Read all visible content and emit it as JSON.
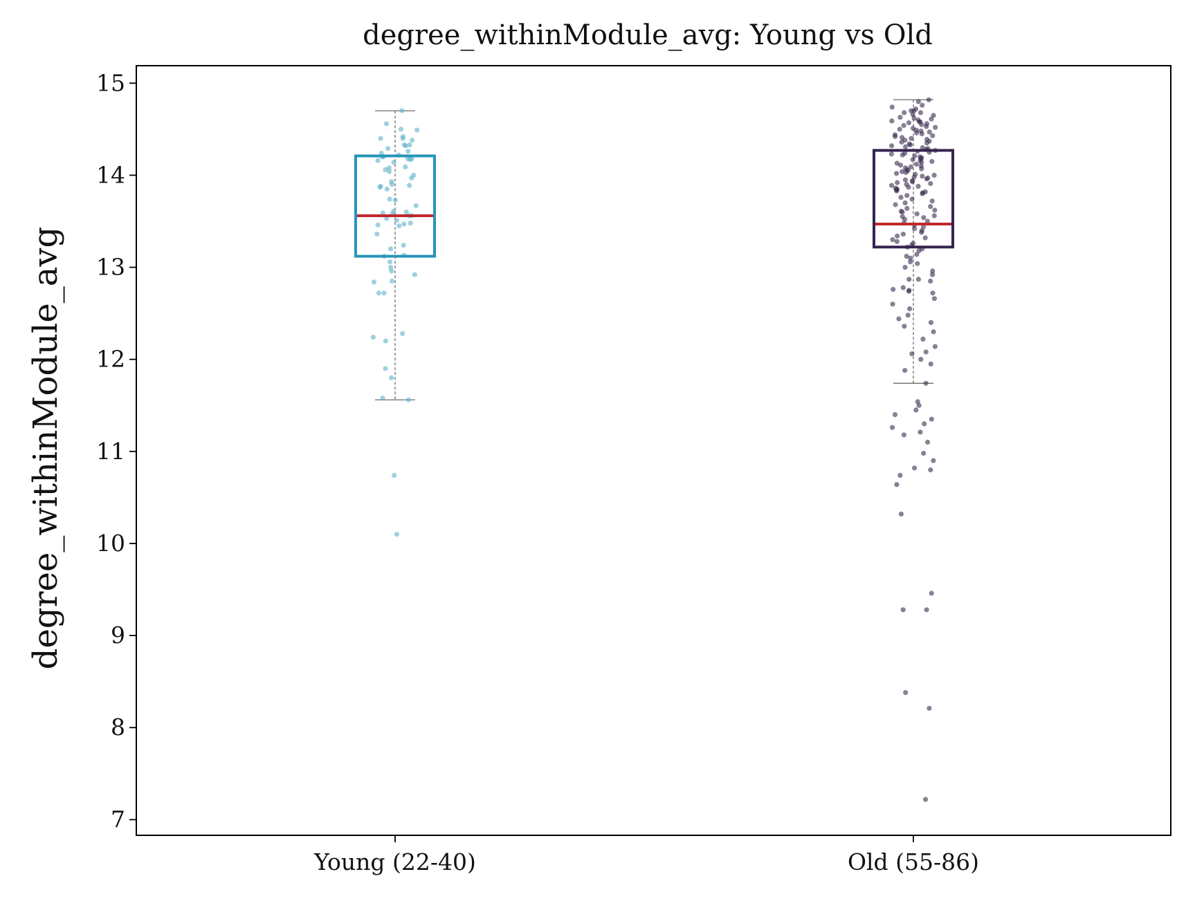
{
  "chart_data": {
    "type": "box",
    "title": "degree_withinModule_avg: Young vs Old",
    "xlabel": "",
    "ylabel": "degree_withinModule_avg",
    "ylim": [
      6.83,
      15.19
    ],
    "yticks": [
      7,
      8,
      9,
      10,
      11,
      12,
      13,
      14,
      15
    ],
    "categories": [
      "Young (22-40)",
      "Old (55-86)"
    ],
    "grid": false,
    "colors": {
      "young_box": "#2596b7",
      "young_points": "#5fb3c9",
      "old_box": "#35234f",
      "old_points": "#3a2c4f",
      "median": "#c1272d",
      "whisker": "#6b6b6b"
    },
    "series": [
      {
        "category": "Young (22-40)",
        "box": {
          "whisker_low": 11.56,
          "q1": 13.12,
          "median": 13.56,
          "q3": 14.21,
          "whisker_high": 14.7
        },
        "points": [
          14.7,
          14.56,
          14.5,
          14.49,
          14.42,
          14.4,
          14.4,
          14.38,
          14.33,
          14.33,
          14.32,
          14.29,
          14.26,
          14.24,
          14.22,
          14.2,
          14.2,
          14.18,
          14.18,
          14.17,
          14.16,
          14.14,
          14.09,
          14.08,
          14.06,
          14.04,
          14.0,
          13.97,
          13.93,
          13.9,
          13.89,
          13.88,
          13.87,
          13.85,
          13.74,
          13.73,
          13.67,
          13.61,
          13.6,
          13.59,
          13.58,
          13.56,
          13.56,
          13.53,
          13.51,
          13.48,
          13.47,
          13.46,
          13.45,
          13.36,
          13.24,
          13.2,
          13.13,
          13.12,
          13.06,
          13.0,
          12.96,
          12.92,
          12.85,
          12.84,
          12.72,
          12.72,
          12.28,
          12.24,
          12.2,
          11.9,
          11.8,
          11.58,
          11.56,
          10.74,
          10.1
        ]
      },
      {
        "category": "Old (55-86)",
        "box": {
          "whisker_low": 11.74,
          "q1": 13.22,
          "median": 13.47,
          "q3": 14.27,
          "whisker_high": 14.82
        },
        "points": [
          14.82,
          14.8,
          14.76,
          14.74,
          14.72,
          14.7,
          14.7,
          14.68,
          14.68,
          14.66,
          14.65,
          14.63,
          14.62,
          14.61,
          14.6,
          14.59,
          14.58,
          14.58,
          14.57,
          14.56,
          14.55,
          14.54,
          14.53,
          14.52,
          14.51,
          14.5,
          14.49,
          14.48,
          14.47,
          14.46,
          14.45,
          14.44,
          14.43,
          14.42,
          14.41,
          14.4,
          14.39,
          14.38,
          14.37,
          14.36,
          14.35,
          14.34,
          14.33,
          14.32,
          14.31,
          14.3,
          14.29,
          14.28,
          14.27,
          14.26,
          14.25,
          14.24,
          14.23,
          14.22,
          14.21,
          14.2,
          14.19,
          14.18,
          14.17,
          14.16,
          14.15,
          14.14,
          14.13,
          14.12,
          14.11,
          14.1,
          14.09,
          14.08,
          14.07,
          14.06,
          14.05,
          14.04,
          14.03,
          14.02,
          14.01,
          14.0,
          13.99,
          13.98,
          13.97,
          13.96,
          13.95,
          13.94,
          13.93,
          13.92,
          13.91,
          13.9,
          13.89,
          13.88,
          13.87,
          13.86,
          13.85,
          13.84,
          13.83,
          13.82,
          13.81,
          13.8,
          13.78,
          13.76,
          13.74,
          13.72,
          13.7,
          13.68,
          13.66,
          13.64,
          13.62,
          13.61,
          13.6,
          13.58,
          13.56,
          13.55,
          13.54,
          13.52,
          13.5,
          13.48,
          13.46,
          13.44,
          13.42,
          13.4,
          13.38,
          13.36,
          13.34,
          13.32,
          13.3,
          13.28,
          13.26,
          13.24,
          13.22,
          13.2,
          13.18,
          13.14,
          13.12,
          13.1,
          13.06,
          13.04,
          13.0,
          12.96,
          12.92,
          12.87,
          12.87,
          12.85,
          12.78,
          12.76,
          12.75,
          12.74,
          12.72,
          12.66,
          12.6,
          12.55,
          12.48,
          12.44,
          12.4,
          12.36,
          12.3,
          12.22,
          12.14,
          12.08,
          12.06,
          12.0,
          11.95,
          11.88,
          11.74,
          11.54,
          11.5,
          11.45,
          11.4,
          11.35,
          11.3,
          11.26,
          11.21,
          11.18,
          11.1,
          10.98,
          10.9,
          10.82,
          10.8,
          10.74,
          10.64,
          10.32,
          9.46,
          9.28,
          9.28,
          8.38,
          8.21,
          7.22
        ]
      }
    ]
  }
}
